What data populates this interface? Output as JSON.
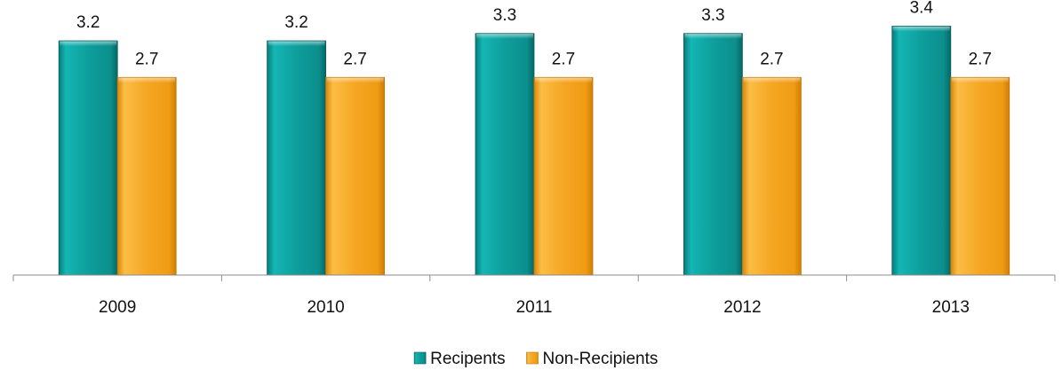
{
  "chart_data": {
    "type": "bar",
    "categories": [
      "2009",
      "2010",
      "2011",
      "2012",
      "2013"
    ],
    "series": [
      {
        "name": "Recipents",
        "values": [
          3.2,
          3.2,
          3.3,
          3.3,
          3.4
        ],
        "labels": [
          "3.2",
          "3.2",
          "3.3",
          "3.3",
          "3.4"
        ],
        "color": "#0e9e9c"
      },
      {
        "name": "Non-Recipients",
        "values": [
          2.7,
          2.7,
          2.7,
          2.7,
          2.7
        ],
        "labels": [
          "2.7",
          "2.7",
          "2.7",
          "2.7",
          "2.7"
        ],
        "color": "#f5a623"
      }
    ],
    "ylim": [
      0,
      3.9
    ],
    "grid": false,
    "legend": "bottom",
    "data_labels": true,
    "style": "3d-bevel"
  }
}
